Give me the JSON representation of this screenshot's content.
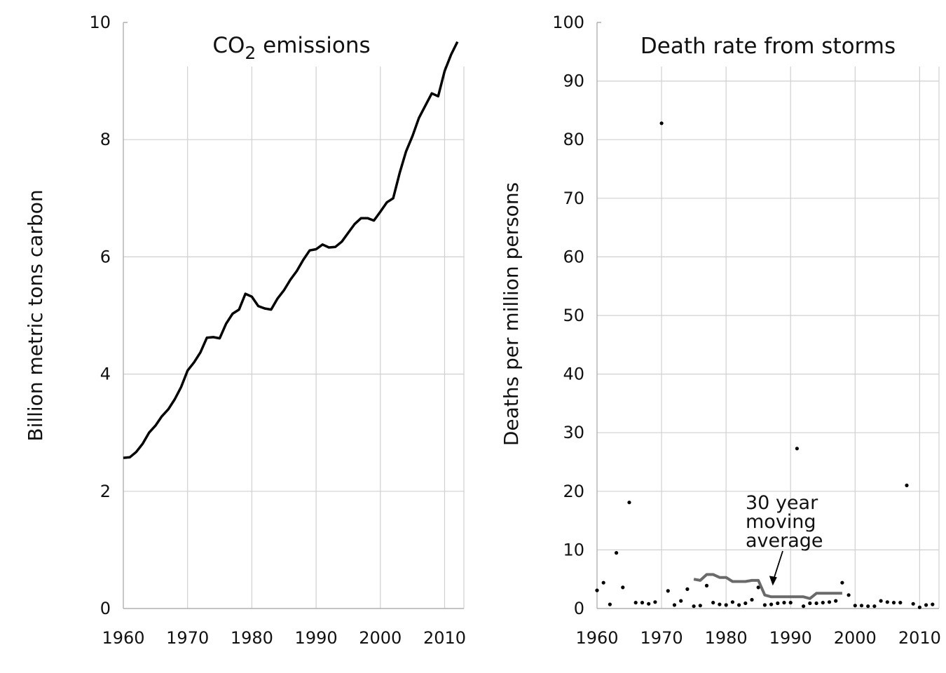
{
  "chart_data": [
    {
      "type": "line",
      "title": "CO2 emissions",
      "title_parts": {
        "main": "CO",
        "sub": "2",
        "rest": " emissions"
      },
      "ylabel": "Billion metric tons carbon",
      "xlabel": "",
      "xlim": [
        1960,
        2013
      ],
      "ylim": [
        0,
        10
      ],
      "xticks": [
        1960,
        1970,
        1980,
        1990,
        2000,
        2010
      ],
      "yticks": [
        0,
        2,
        4,
        6,
        8,
        10
      ],
      "grid": true,
      "line_color": "#000000",
      "series": [
        {
          "x": [
            1960,
            1961,
            1962,
            1963,
            1964,
            1965,
            1966,
            1967,
            1968,
            1969,
            1970,
            1971,
            1972,
            1973,
            1974,
            1975,
            1976,
            1977,
            1978,
            1979,
            1980,
            1981,
            1982,
            1983,
            1984,
            1985,
            1986,
            1987,
            1988,
            1989,
            1990,
            1991,
            1992,
            1993,
            1994,
            1995,
            1996,
            1997,
            1998,
            1999,
            2000,
            2001,
            2002,
            2003,
            2004,
            2005,
            2006,
            2007,
            2008,
            2009,
            2010,
            2011,
            2012
          ],
          "values": [
            2.57,
            2.58,
            2.67,
            2.81,
            3.0,
            3.12,
            3.28,
            3.4,
            3.57,
            3.78,
            4.06,
            4.2,
            4.37,
            4.62,
            4.63,
            4.61,
            4.86,
            5.03,
            5.1,
            5.37,
            5.32,
            5.16,
            5.12,
            5.1,
            5.29,
            5.43,
            5.61,
            5.76,
            5.95,
            6.11,
            6.13,
            6.21,
            6.16,
            6.17,
            6.26,
            6.41,
            6.56,
            6.66,
            6.66,
            6.62,
            6.77,
            6.93,
            7.0,
            7.43,
            7.8,
            8.06,
            8.37,
            8.58,
            8.79,
            8.74,
            9.17,
            9.45,
            9.67
          ]
        }
      ]
    },
    {
      "type": "scatter",
      "title": "Death rate from storms",
      "ylabel": "Deaths per million persons",
      "xlabel": "",
      "xlim": [
        1960,
        2013
      ],
      "ylim": [
        0,
        100
      ],
      "xticks": [
        1960,
        1970,
        1980,
        1990,
        2000,
        2010
      ],
      "yticks": [
        0,
        10,
        20,
        30,
        40,
        50,
        60,
        70,
        80,
        90,
        100
      ],
      "grid": true,
      "annotation": {
        "lines": [
          "30 year",
          "moving",
          "average"
        ],
        "points_to_x": 1988,
        "points_to_y": 2.7
      },
      "series": [
        {
          "kind": "points",
          "color": "#000000",
          "x": [
            1960,
            1961,
            1962,
            1963,
            1964,
            1965,
            1966,
            1967,
            1968,
            1969,
            1970,
            1971,
            1972,
            1973,
            1974,
            1975,
            1976,
            1977,
            1978,
            1979,
            1980,
            1981,
            1982,
            1983,
            1984,
            1985,
            1986,
            1987,
            1988,
            1989,
            1990,
            1991,
            1992,
            1993,
            1994,
            1995,
            1996,
            1997,
            1998,
            1999,
            2000,
            2001,
            2002,
            2003,
            2004,
            2005,
            2006,
            2007,
            2008,
            2009,
            2010,
            2011,
            2012
          ],
          "values": [
            3.1,
            4.4,
            0.7,
            9.5,
            3.6,
            18.1,
            1.0,
            1.0,
            0.8,
            1.1,
            82.8,
            3.0,
            0.6,
            1.3,
            3.3,
            0.4,
            0.5,
            3.9,
            1.0,
            0.7,
            0.6,
            1.1,
            0.6,
            0.9,
            1.5,
            3.6,
            0.6,
            0.7,
            0.9,
            1.0,
            1.0,
            27.3,
            0.4,
            0.9,
            0.9,
            1.0,
            1.1,
            1.3,
            4.4,
            2.3,
            0.5,
            0.5,
            0.4,
            0.4,
            1.3,
            1.1,
            1.0,
            1.0,
            21.0,
            0.8,
            0.2,
            0.6,
            0.7
          ]
        },
        {
          "kind": "moving-average",
          "color": "#6a6a6a",
          "x": [
            1975,
            1976,
            1977,
            1978,
            1979,
            1980,
            1981,
            1982,
            1983,
            1984,
            1985,
            1986,
            1987,
            1988,
            1989,
            1990,
            1991,
            1992,
            1993,
            1994,
            1995,
            1996,
            1997,
            1998
          ],
          "values": [
            5.0,
            4.8,
            5.8,
            5.8,
            5.3,
            5.3,
            4.6,
            4.6,
            4.6,
            4.8,
            4.8,
            2.3,
            2.0,
            2.0,
            2.0,
            2.0,
            2.0,
            2.0,
            1.7,
            2.6,
            2.6,
            2.6,
            2.6,
            2.6
          ]
        }
      ]
    }
  ]
}
